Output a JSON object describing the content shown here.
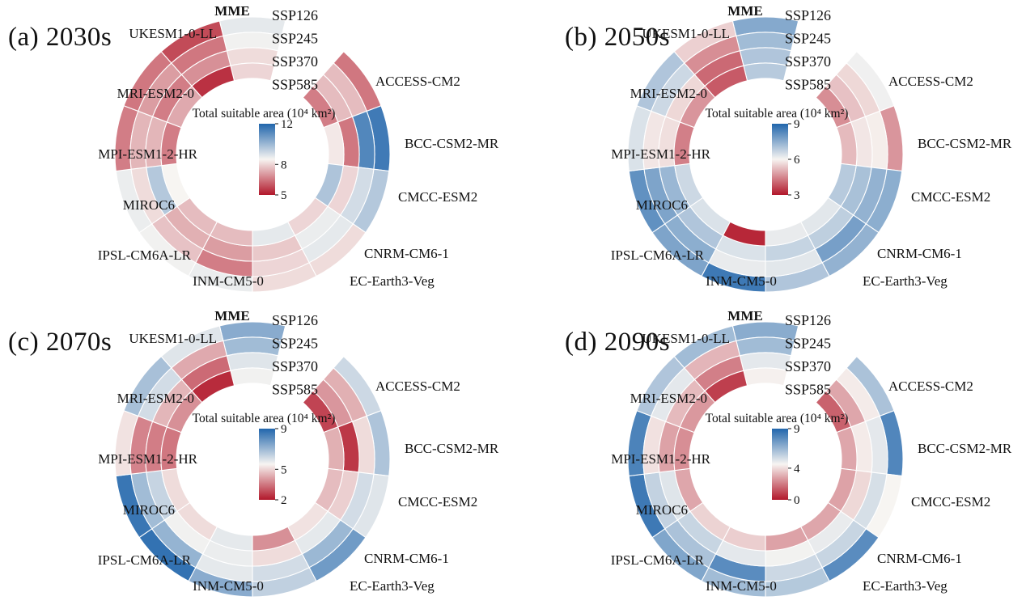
{
  "figure": {
    "ring_labels": [
      "SSP126",
      "SSP245",
      "SSP370",
      "SSP585"
    ],
    "models": [
      "MME",
      "ACCESS-CM2",
      "BCC-CSM2-MR",
      "CMCC-ESM2",
      "CNRM-CM6-1",
      "EC-Earth3-Veg",
      "INM-CM5-0",
      "IPSL-CM6A-LR",
      "MIROC6",
      "MPI-ESM1-2-HR",
      "MRI-ESM2-0",
      "UKESM1-0-LL"
    ],
    "colorbar_title": "Total suitable area (10⁴ km²)",
    "colors": {
      "low": "#b2182b",
      "mid": "#f7f5f2",
      "high": "#2166ac"
    }
  },
  "chart_data": [
    {
      "type": "heatmap",
      "panel": "a",
      "title": "(a) 2030s",
      "units": "10⁴ km²",
      "rings_outer_to_inner": [
        "SSP126",
        "SSP245",
        "SSP370",
        "SSP585"
      ],
      "scale": {
        "min": 5,
        "max": 12
      },
      "colorbar_ticks": [
        12,
        8,
        5
      ],
      "series": [
        {
          "name": "MME",
          "values": [
            8.8,
            8.6,
            8.1,
            8.0
          ]
        },
        {
          "name": "ACCESS-CM2",
          "values": [
            6.5,
            7.6,
            7.6,
            6.6
          ]
        },
        {
          "name": "BCC-CSM2-MR",
          "values": [
            11.5,
            11.2,
            6.5,
            8.3
          ]
        },
        {
          "name": "CMCC-ESM2",
          "values": [
            9.6,
            9.1,
            8.0,
            9.7
          ]
        },
        {
          "name": "CNRM-CM6-1",
          "values": [
            8.1,
            8.8,
            8.7,
            8.0
          ]
        },
        {
          "name": "EC-Earth3-Veg",
          "values": [
            8.1,
            8.0,
            7.8,
            8.8
          ]
        },
        {
          "name": "INM-CM5-0",
          "values": [
            8.7,
            6.6,
            7.1,
            7.6
          ]
        },
        {
          "name": "IPSL-CM6A-LR",
          "values": [
            8.6,
            7.7,
            7.4,
            7.6
          ]
        },
        {
          "name": "MIROC6",
          "values": [
            8.7,
            8.1,
            9.6,
            8.5
          ]
        },
        {
          "name": "MPI-ESM1-2-HR",
          "values": [
            6.6,
            7.5,
            7.5,
            6.6
          ]
        },
        {
          "name": "MRI-ESM2-0",
          "values": [
            6.5,
            7.1,
            6.6,
            7.3
          ]
        },
        {
          "name": "UKESM1-0-LL",
          "values": [
            5.8,
            6.5,
            6.9,
            5.4
          ]
        }
      ]
    },
    {
      "type": "heatmap",
      "panel": "b",
      "title": "(b) 2050s",
      "units": "10⁴ km²",
      "rings_outer_to_inner": [
        "SSP126",
        "SSP245",
        "SSP370",
        "SSP585"
      ],
      "scale": {
        "min": 3,
        "max": 9
      },
      "colorbar_ticks": [
        9,
        6,
        3
      ],
      "series": [
        {
          "name": "MME",
          "values": [
            7.6,
            7.2,
            7.0,
            6.9
          ]
        },
        {
          "name": "ACCESS-CM2",
          "values": [
            6.1,
            5.6,
            5.3,
            4.6
          ]
        },
        {
          "name": "BCC-CSM2-MR",
          "values": [
            4.7,
            5.9,
            5.8,
            5.2
          ]
        },
        {
          "name": "CMCC-ESM2",
          "values": [
            7.5,
            7.4,
            7.1,
            6.9
          ]
        },
        {
          "name": "CNRM-CM6-1",
          "values": [
            7.4,
            7.8,
            6.8,
            6.3
          ]
        },
        {
          "name": "EC-Earth3-Veg",
          "values": [
            7.0,
            6.3,
            6.7,
            6.2
          ]
        },
        {
          "name": "INM-CM5-0",
          "values": [
            8.6,
            6.2,
            6.4,
            3.2
          ]
        },
        {
          "name": "IPSL-CM6A-LR",
          "values": [
            7.7,
            7.5,
            7.0,
            6.4
          ]
        },
        {
          "name": "MIROC6",
          "values": [
            8.1,
            7.7,
            7.3,
            6.6
          ]
        },
        {
          "name": "MPI-ESM1-2-HR",
          "values": [
            6.4,
            5.8,
            5.7,
            4.4
          ]
        },
        {
          "name": "MRI-ESM2-0",
          "values": [
            7.0,
            6.6,
            5.6,
            4.7
          ]
        },
        {
          "name": "UKESM1-0-LL",
          "values": [
            5.5,
            4.6,
            4.1,
            3.9
          ]
        }
      ]
    },
    {
      "type": "heatmap",
      "panel": "c",
      "title": "(c) 2070s",
      "units": "10⁴ km²",
      "rings_outer_to_inner": [
        "SSP126",
        "SSP245",
        "SSP370",
        "SSP585"
      ],
      "scale": {
        "min": 2,
        "max": 9
      },
      "colorbar_ticks": [
        9,
        5,
        2
      ],
      "series": [
        {
          "name": "MME",
          "values": [
            7.3,
            6.9,
            5.9,
            5.6
          ]
        },
        {
          "name": "ACCESS-CM2",
          "values": [
            6.2,
            4.4,
            4.0,
            2.7
          ]
        },
        {
          "name": "BCC-CSM2-MR",
          "values": [
            6.7,
            5.1,
            2.5,
            4.4
          ]
        },
        {
          "name": "CMCC-ESM2",
          "values": [
            5.9,
            6.1,
            4.9,
            4.6
          ]
        },
        {
          "name": "CNRM-CM6-1",
          "values": [
            7.7,
            7.0,
            5.8,
            5.2
          ]
        },
        {
          "name": "EC-Earth3-Veg",
          "values": [
            6.4,
            6.1,
            5.1,
            3.9
          ]
        },
        {
          "name": "INM-CM5-0",
          "values": [
            7.3,
            5.8,
            5.7,
            5.8
          ]
        },
        {
          "name": "IPSL-CM6A-LR",
          "values": [
            8.7,
            7.1,
            5.6,
            5.1
          ]
        },
        {
          "name": "MIROC6",
          "values": [
            8.6,
            6.9,
            6.3,
            5.1
          ]
        },
        {
          "name": "MPI-ESM1-2-HR",
          "values": [
            5.2,
            3.7,
            3.6,
            3.5
          ]
        },
        {
          "name": "MRI-ESM2-0",
          "values": [
            6.8,
            6.1,
            4.5,
            3.9
          ]
        },
        {
          "name": "UKESM1-0-LL",
          "values": [
            5.9,
            4.3,
            3.3,
            2.3
          ]
        }
      ]
    },
    {
      "type": "heatmap",
      "panel": "d",
      "title": "(d) 2090s",
      "units": "10⁴ km²",
      "rings_outer_to_inner": [
        "SSP126",
        "SSP245",
        "SSP370",
        "SSP585"
      ],
      "scale": {
        "min": 0,
        "max": 9
      },
      "colorbar_ticks": [
        9,
        4,
        0
      ],
      "series": [
        {
          "name": "MME",
          "values": [
            6.8,
            6.3,
            4.9,
            4.4
          ]
        },
        {
          "name": "ACCESS-CM2",
          "values": [
            6.1,
            4.3,
            2.9,
            1.5
          ]
        },
        {
          "name": "BCC-CSM2-MR",
          "values": [
            8.0,
            4.9,
            4.3,
            2.9
          ]
        },
        {
          "name": "CMCC-ESM2",
          "values": [
            4.5,
            5.2,
            3.9,
            2.8
          ]
        },
        {
          "name": "CNRM-CM6-1",
          "values": [
            7.8,
            5.5,
            4.8,
            2.9
          ]
        },
        {
          "name": "EC-Earth3-Veg",
          "values": [
            5.9,
            5.4,
            4.6,
            2.8
          ]
        },
        {
          "name": "INM-CM5-0",
          "values": [
            6.3,
            7.8,
            4.9,
            3.7
          ]
        },
        {
          "name": "IPSL-CM6A-LR",
          "values": [
            7.0,
            6.1,
            5.5,
            3.8
          ]
        },
        {
          "name": "MIROC6",
          "values": [
            8.4,
            5.6,
            5.0,
            2.9
          ]
        },
        {
          "name": "MPI-ESM1-2-HR",
          "values": [
            8.1,
            4.1,
            2.8,
            2.4
          ]
        },
        {
          "name": "MRI-ESM2-0",
          "values": [
            6.0,
            4.9,
            3.3,
            2.6
          ]
        },
        {
          "name": "UKESM1-0-LL",
          "values": [
            6.3,
            3.2,
            2.1,
            0.8
          ]
        }
      ]
    }
  ]
}
